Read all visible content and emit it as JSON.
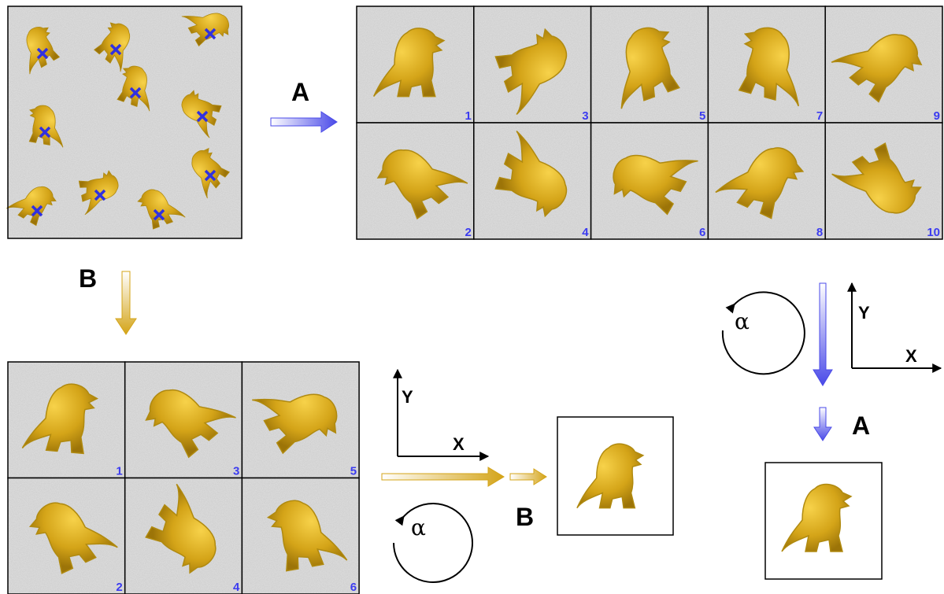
{
  "step_labels": {
    "a": "A",
    "b": "B"
  },
  "class_a": {
    "numbers": [
      1,
      3,
      5,
      7,
      9,
      2,
      4,
      6,
      8,
      10
    ]
  },
  "class_b": {
    "numbers": [
      1,
      3,
      5,
      2,
      4,
      6
    ]
  },
  "axes": {
    "x": "X",
    "y": "Y",
    "rotation": "α"
  }
}
